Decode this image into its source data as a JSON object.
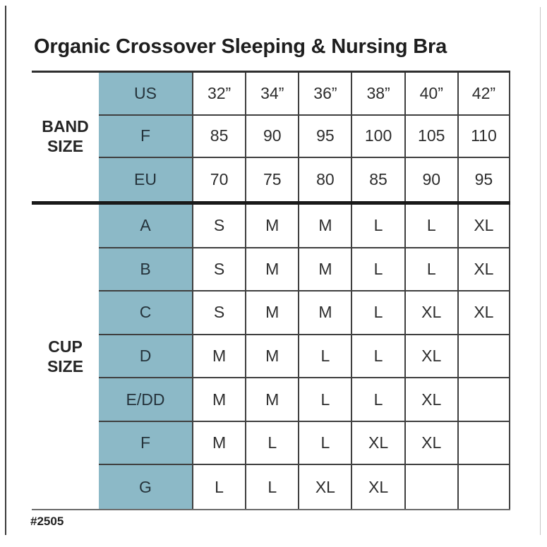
{
  "title": "Organic Crossover Sleeping & Nursing Bra",
  "footnote": "#2505",
  "colors": {
    "header_blue": "#8cb9c7",
    "size_s_shade": "#f2efe9",
    "size_m_shade": "#e4e0d9",
    "size_l_shade": "#ccc8c0",
    "size_xl_shade": "#b4b0a8",
    "grid_line": "#3f3f3f"
  },
  "chart_data": {
    "type": "table",
    "title": "Organic Crossover Sleeping & Nursing Bra",
    "footnote": "#2505",
    "band": {
      "label": "BAND SIZE",
      "rows": [
        {
          "label": "US",
          "values": [
            "32”",
            "34”",
            "36”",
            "38”",
            "40”",
            "42”"
          ]
        },
        {
          "label": "F",
          "values": [
            "85",
            "90",
            "95",
            "100",
            "105",
            "110"
          ]
        },
        {
          "label": "EU",
          "values": [
            "70",
            "75",
            "80",
            "85",
            "90",
            "95"
          ]
        }
      ]
    },
    "cup": {
      "label": "CUP SIZE",
      "rows": [
        {
          "label": "A",
          "values": [
            "S",
            "M",
            "M",
            "L",
            "L",
            "XL"
          ]
        },
        {
          "label": "B",
          "values": [
            "S",
            "M",
            "M",
            "L",
            "L",
            "XL"
          ]
        },
        {
          "label": "C",
          "values": [
            "S",
            "M",
            "M",
            "L",
            "XL",
            "XL"
          ]
        },
        {
          "label": "D",
          "values": [
            "M",
            "M",
            "L",
            "L",
            "XL",
            ""
          ]
        },
        {
          "label": "E/DD",
          "values": [
            "M",
            "M",
            "L",
            "L",
            "XL",
            ""
          ]
        },
        {
          "label": "F",
          "values": [
            "M",
            "L",
            "L",
            "XL",
            "XL",
            ""
          ]
        },
        {
          "label": "G",
          "values": [
            "L",
            "L",
            "XL",
            "XL",
            "",
            ""
          ]
        }
      ]
    }
  }
}
